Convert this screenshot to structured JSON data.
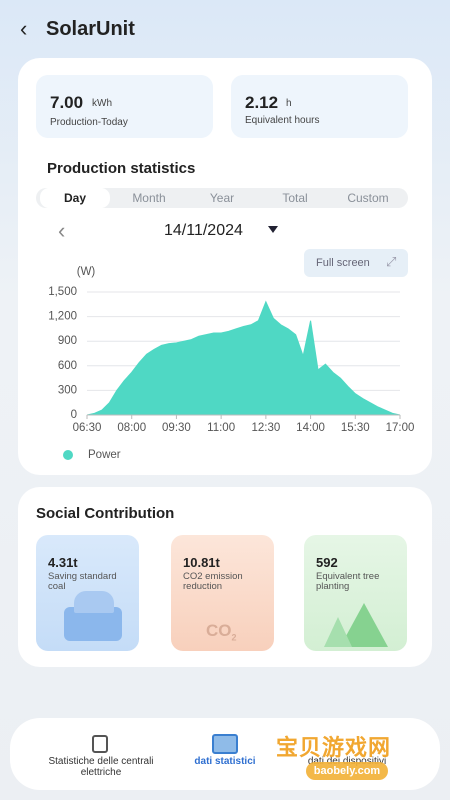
{
  "header": {
    "title": "SolarUnit"
  },
  "stats": [
    {
      "value": "7.00",
      "unit": "kWh",
      "label": "Production-Today"
    },
    {
      "value": "2.12",
      "unit": "h",
      "label": "Equivalent hours"
    }
  ],
  "production": {
    "title": "Production statistics",
    "tabs": [
      "Day",
      "Month",
      "Year",
      "Total",
      "Custom"
    ],
    "date": "14/11/2024",
    "full_screen": "Full screen"
  },
  "chart_data": {
    "type": "area",
    "y_label": "(W)",
    "x": [
      6.5,
      6.75,
      7,
      7.25,
      7.5,
      7.75,
      8,
      8.25,
      8.5,
      8.75,
      9,
      9.25,
      9.5,
      9.75,
      10,
      10.25,
      10.5,
      10.75,
      11,
      11.25,
      11.5,
      11.75,
      12,
      12.25,
      12.5,
      12.75,
      13,
      13.25,
      13.5,
      13.75,
      14,
      14.25,
      14.5,
      14.75,
      15,
      15.25,
      15.5,
      15.75,
      16,
      16.25,
      16.5,
      16.75,
      17
    ],
    "series": [
      {
        "name": "Power",
        "color": "#4fd8c4",
        "values": [
          0,
          20,
          60,
          150,
          300,
          420,
          520,
          640,
          740,
          800,
          850,
          870,
          880,
          900,
          920,
          960,
          980,
          1000,
          1000,
          1020,
          1050,
          1080,
          1100,
          1150,
          1380,
          1180,
          1100,
          1050,
          980,
          720,
          1150,
          550,
          620,
          520,
          450,
          350,
          260,
          200,
          150,
          100,
          60,
          20,
          0
        ]
      }
    ],
    "xlim": [
      6.5,
      17
    ],
    "xticks": [
      {
        "value": 6.5,
        "label": "06:30"
      },
      {
        "value": 8,
        "label": "08:00"
      },
      {
        "value": 9.5,
        "label": "09:30"
      },
      {
        "value": 11,
        "label": "11:00"
      },
      {
        "value": 12.5,
        "label": "12:30"
      },
      {
        "value": 14,
        "label": "14:00"
      },
      {
        "value": 15.5,
        "label": "15:30"
      },
      {
        "value": 17,
        "label": "17:00"
      }
    ],
    "ylim": [
      0,
      1500
    ],
    "yticks": [
      0,
      300,
      600,
      900,
      {
        "value": 1200,
        "label": "1,200"
      },
      {
        "value": 1500,
        "label": "1,500"
      }
    ],
    "grid": true
  },
  "social": {
    "title": "Social Contribution",
    "cards": [
      {
        "value": "4.31t",
        "label": "Saving standard coal"
      },
      {
        "value": "10.81t",
        "label": "CO2 emission reduction"
      },
      {
        "value": "592",
        "label": "Equivalent tree planting"
      }
    ]
  },
  "nav": [
    "Statistiche delle centrali elettriche",
    "dati statistici",
    "dati dei dispositivi"
  ],
  "watermark": {
    "title": "宝贝游戏网",
    "url": "baobely.com"
  }
}
